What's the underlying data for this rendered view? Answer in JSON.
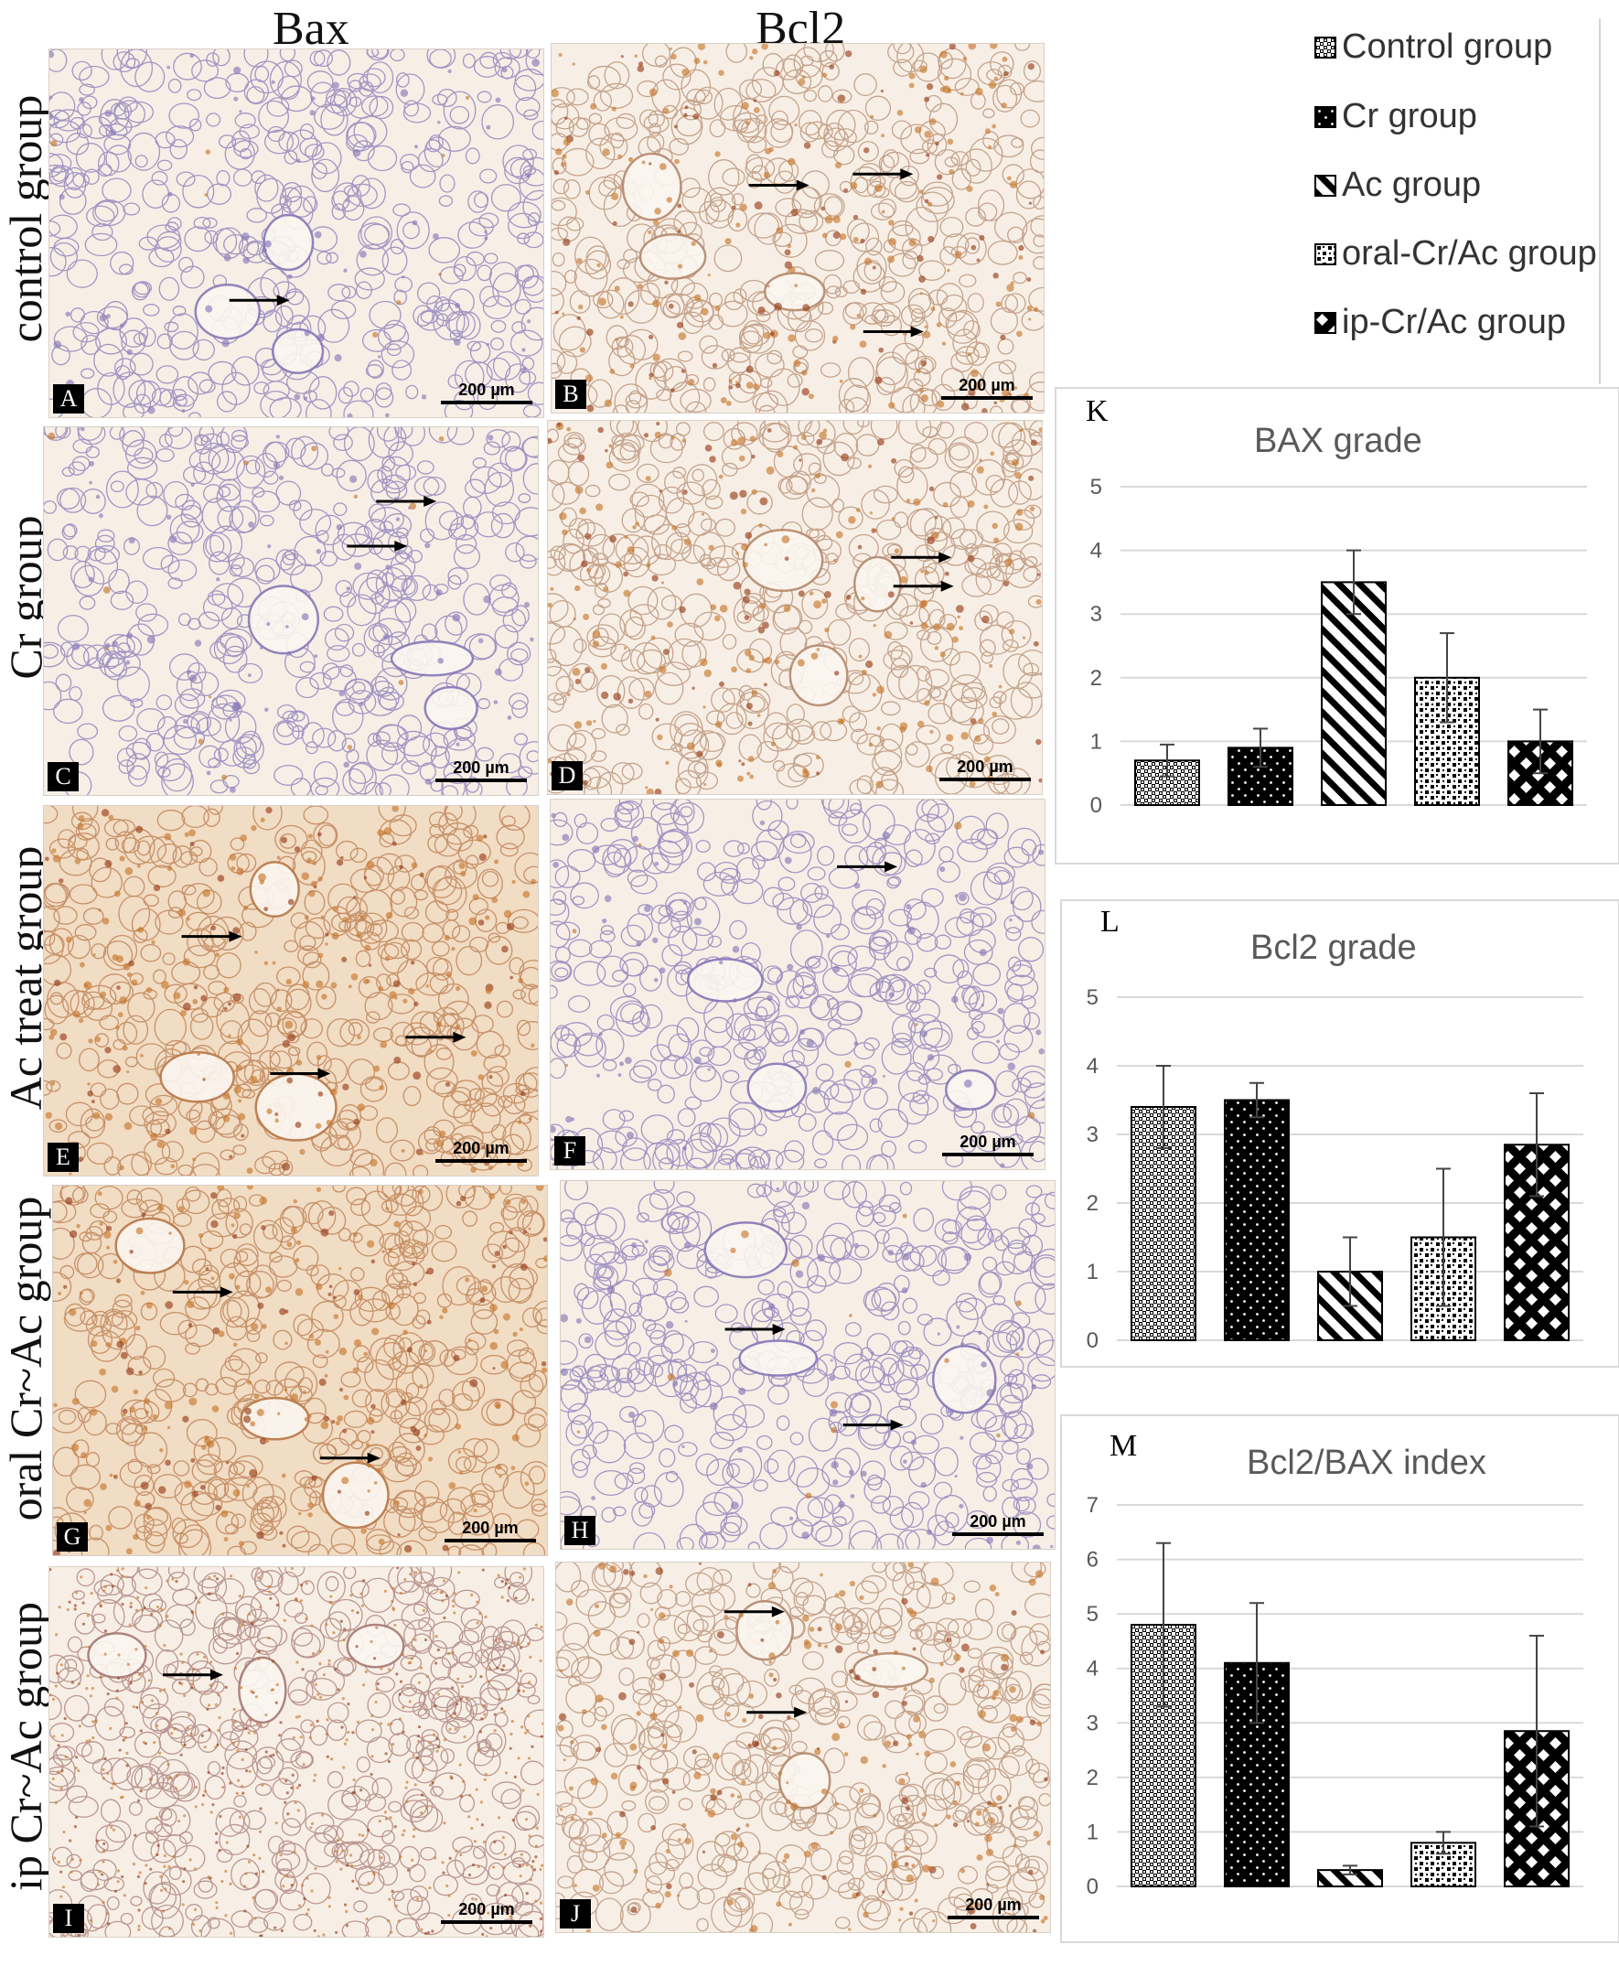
{
  "figure": {
    "column_headers": [
      "Bax",
      "Bcl2"
    ],
    "row_labels": [
      "control group",
      "Cr group",
      "Ac treat group",
      "oral Cr~Ac group",
      "ip Cr~Ac group"
    ],
    "panels": [
      {
        "letter": "A",
        "scale": "200 µm",
        "stain": "light"
      },
      {
        "letter": "B",
        "scale": "200 µm",
        "stain": "brown"
      },
      {
        "letter": "C",
        "scale": "200 µm",
        "stain": "light"
      },
      {
        "letter": "D",
        "scale": "200 µm",
        "stain": "brown"
      },
      {
        "letter": "E",
        "scale": "200 µm",
        "stain": "heavy"
      },
      {
        "letter": "F",
        "scale": "200 µm",
        "stain": "light"
      },
      {
        "letter": "G",
        "scale": "200 µm",
        "stain": "heavy"
      },
      {
        "letter": "H",
        "scale": "200 µm",
        "stain": "light"
      },
      {
        "letter": "I",
        "scale": "200 µm",
        "stain": "dotted"
      },
      {
        "letter": "J",
        "scale": "200 µm",
        "stain": "brown"
      }
    ],
    "legend": [
      "Control group",
      "Cr group",
      "Ac group",
      "oral-Cr/Ac group",
      "ip-Cr/Ac group"
    ],
    "colors": {
      "tissue_bg": "#f7efe6",
      "hematoxylin": "#8878b8",
      "dab": "#c8782e",
      "dab_dark": "#9a3f1c"
    }
  },
  "chart_data": [
    {
      "type": "bar",
      "panel": "K",
      "title": "BAX grade",
      "categories": [
        "Control group",
        "Cr group",
        "Ac group",
        "oral-Cr/Ac group",
        "ip-Cr/Ac group"
      ],
      "values": [
        0.7,
        0.9,
        3.5,
        2.0,
        1.0
      ],
      "errors": [
        0.25,
        0.3,
        0.5,
        0.7,
        0.5
      ],
      "ylim": [
        0,
        5
      ],
      "yticks": [
        0,
        1,
        2,
        3,
        4,
        5
      ],
      "grid": true
    },
    {
      "type": "bar",
      "panel": "L",
      "title": "Bcl2 grade",
      "categories": [
        "Control group",
        "Cr group",
        "Ac group",
        "oral-Cr/Ac group",
        "ip-Cr/Ac group"
      ],
      "values": [
        3.4,
        3.5,
        1.0,
        1.5,
        2.85
      ],
      "errors": [
        0.6,
        0.25,
        0.5,
        1.0,
        0.75
      ],
      "ylim": [
        0,
        5
      ],
      "yticks": [
        0,
        1,
        2,
        3,
        4,
        5
      ],
      "grid": true
    },
    {
      "type": "bar",
      "panel": "M",
      "title": "Bcl2/BAX index",
      "categories": [
        "Control group",
        "Cr group",
        "Ac group",
        "oral-Cr/Ac group",
        "ip-Cr/Ac group"
      ],
      "values": [
        4.8,
        4.1,
        0.3,
        0.8,
        2.85
      ],
      "errors": [
        1.5,
        1.1,
        0.08,
        0.2,
        1.75
      ],
      "ylim": [
        0,
        7
      ],
      "yticks": [
        0,
        1,
        2,
        3,
        4,
        5,
        6,
        7
      ],
      "grid": true
    }
  ]
}
